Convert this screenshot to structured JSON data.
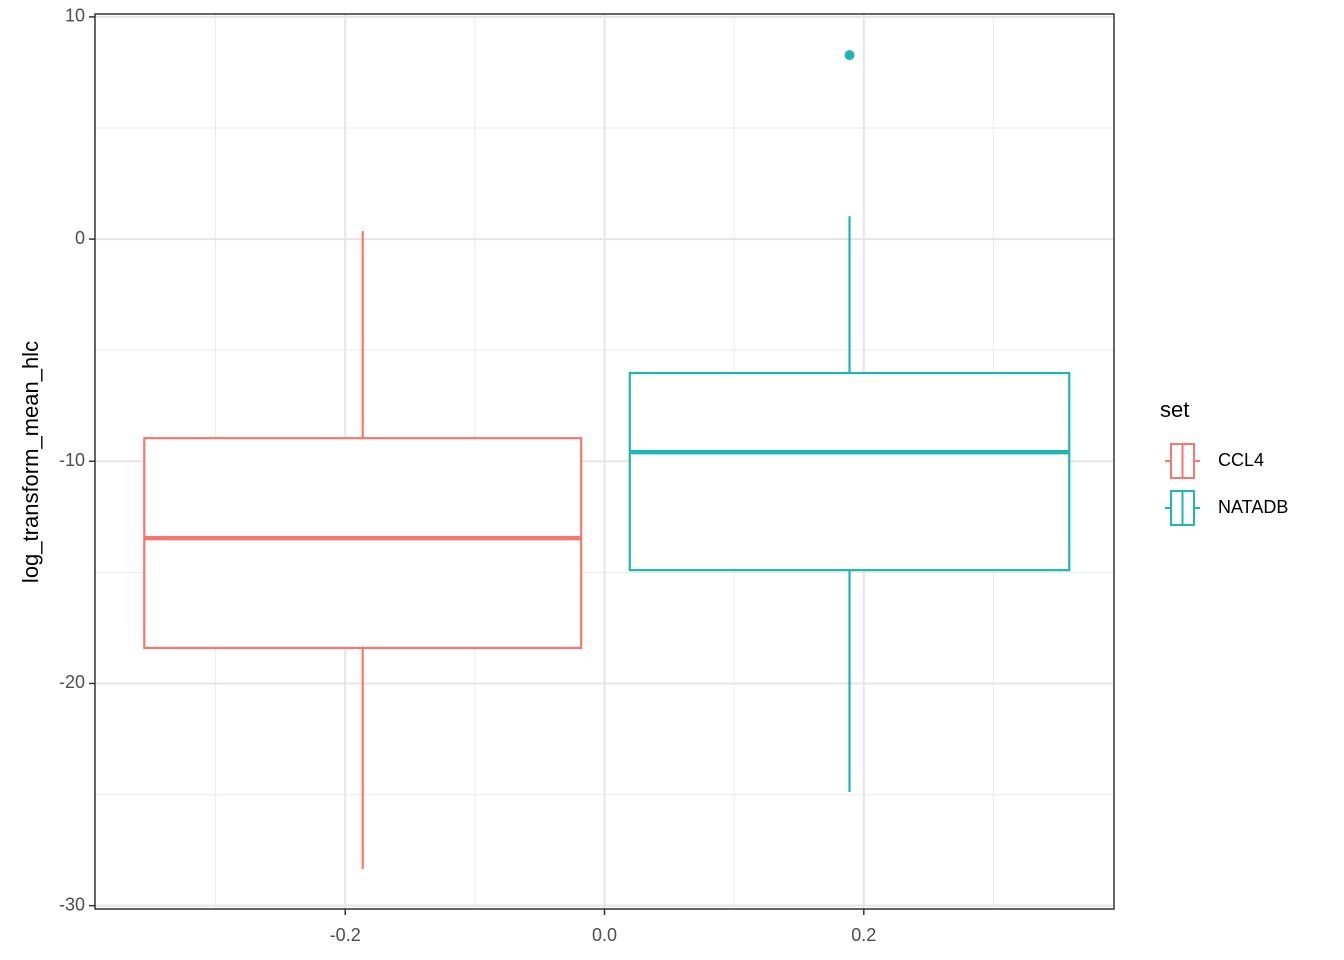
{
  "chart_data": {
    "type": "box",
    "y_label": "log_transform_mean_hlc",
    "legend_title": "set",
    "legend": "right",
    "grid": true,
    "xlim": [
      -0.393,
      0.393
    ],
    "ylim": [
      -30.15,
      10.13
    ],
    "xticks": [
      -0.2,
      {
        "value": 0,
        "label": "0.0"
      },
      0.2
    ],
    "xminor": [
      -0.3,
      -0.1,
      0.1,
      0.3
    ],
    "yticks": [
      10,
      0,
      -10,
      -20,
      -30
    ],
    "yminor": [
      5,
      -5,
      -15,
      -25
    ],
    "series": [
      {
        "name": "CCL4",
        "color": "#f8766d",
        "x": -0.1865,
        "width": 0.337,
        "whisker_low": -28.35,
        "q1": -18.4,
        "median": -13.46,
        "q3": -8.96,
        "whisker_high": 0.36
      },
      {
        "name": "NATADB",
        "color": "#1fb5b5",
        "x": 0.189,
        "width": 0.339,
        "whisker_low": -24.89,
        "q1": -14.9,
        "median": -9.59,
        "q3": -6.03,
        "whisker_high": 1.03,
        "outliers": [
          8.28
        ]
      }
    ]
  }
}
